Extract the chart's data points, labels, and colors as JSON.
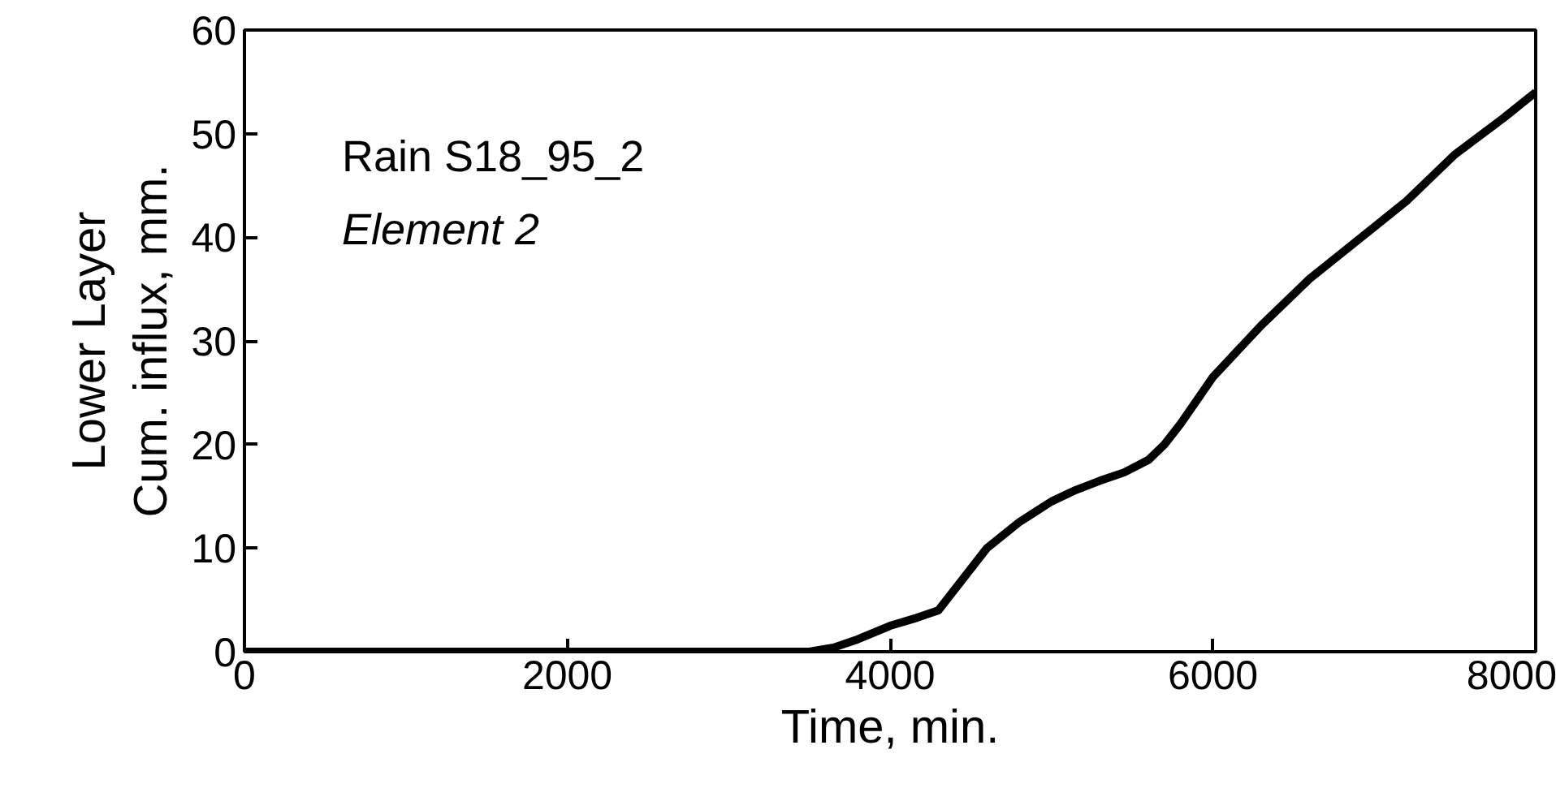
{
  "chart_data": {
    "type": "line",
    "xlabel": "Time, min.",
    "ylabel": "Lower Layer\nCum. influx, mm.",
    "annotations": [
      "Rain S18_95_2",
      "Element 2"
    ],
    "xlim": [
      0,
      8000
    ],
    "ylim": [
      0,
      60
    ],
    "xticks": [
      0,
      2000,
      4000,
      6000,
      8000
    ],
    "yticks": [
      0,
      10,
      20,
      30,
      40,
      50,
      60
    ],
    "series": [
      {
        "color": "#000000",
        "x": [
          0,
          1000,
          2000,
          3000,
          3500,
          3650,
          3800,
          4000,
          4150,
          4300,
          4450,
          4600,
          4800,
          5000,
          5150,
          5300,
          5450,
          5600,
          5700,
          5800,
          6000,
          6300,
          6600,
          7000,
          7200,
          7500,
          7800,
          8000
        ],
        "values": [
          0,
          0,
          0,
          0,
          0,
          0.4,
          1.2,
          2.5,
          3.2,
          4,
          7,
          10,
          12.5,
          14.5,
          15.6,
          16.5,
          17.3,
          18.5,
          20,
          22,
          26.5,
          31.5,
          36,
          41,
          43.5,
          48,
          51.5,
          54
        ]
      }
    ],
    "grid": false,
    "marker": "none",
    "line_style": "solid"
  }
}
